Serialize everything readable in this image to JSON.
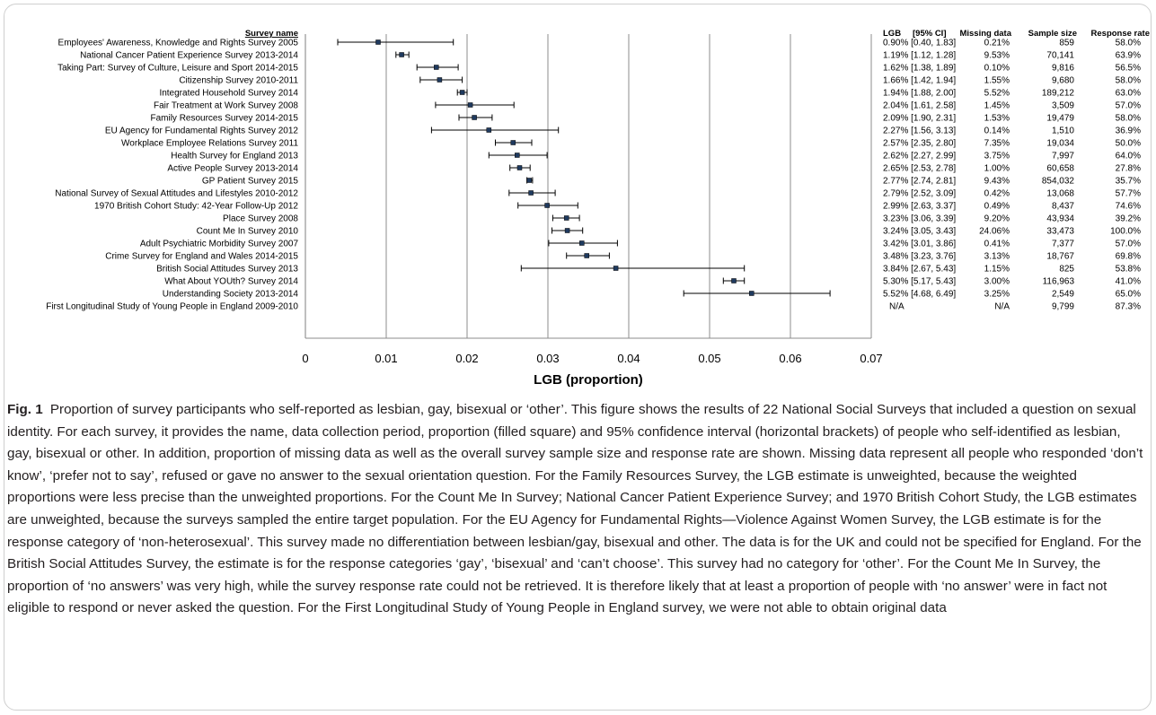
{
  "chart_data": {
    "type": "forest",
    "xlabel": "LGB (proportion)",
    "xlim": [
      0,
      0.07
    ],
    "xticks": [
      "0",
      "0.01",
      "0.02",
      "0.03",
      "0.04",
      "0.05",
      "0.06",
      "0.07"
    ],
    "grid": "vertical",
    "headers": {
      "name": "Survey name",
      "lgb": "LGB",
      "ci": "[95% CI]",
      "missing": "Missing data",
      "sample": "Sample size",
      "response": "Response rate"
    },
    "rows": [
      {
        "name": "Employees' Awareness, Knowledge and Rights Survey 2005",
        "est": 0.009,
        "lo": 0.004,
        "hi": 0.0183,
        "lgb": "0.90% [0.40, 1.83]",
        "missing": "0.21%",
        "sample": "859",
        "response": "58.0%"
      },
      {
        "name": "National Cancer Patient Experience Survey 2013-2014",
        "est": 0.0119,
        "lo": 0.0112,
        "hi": 0.0128,
        "lgb": "1.19% [1.12, 1.28]",
        "missing": "9.53%",
        "sample": "70,141",
        "response": "63.9%"
      },
      {
        "name": "Taking Part: Survey of Culture, Leisure and Sport 2014-2015",
        "est": 0.0162,
        "lo": 0.0138,
        "hi": 0.0189,
        "lgb": "1.62% [1.38, 1.89]",
        "missing": "0.10%",
        "sample": "9,816",
        "response": "56.5%"
      },
      {
        "name": "Citizenship Survey 2010-2011",
        "est": 0.0166,
        "lo": 0.0142,
        "hi": 0.0194,
        "lgb": "1.66% [1.42, 1.94]",
        "missing": "1.55%",
        "sample": "9,680",
        "response": "58.0%"
      },
      {
        "name": "Integrated Household Survey 2014",
        "est": 0.0194,
        "lo": 0.0188,
        "hi": 0.02,
        "lgb": "1.94% [1.88, 2.00]",
        "missing": "5.52%",
        "sample": "189,212",
        "response": "63.0%"
      },
      {
        "name": "Fair Treatment at Work Survey 2008",
        "est": 0.0204,
        "lo": 0.0161,
        "hi": 0.0258,
        "lgb": "2.04% [1.61, 2.58]",
        "missing": "1.45%",
        "sample": "3,509",
        "response": "57.0%"
      },
      {
        "name": "Family Resources Survey 2014-2015",
        "est": 0.0209,
        "lo": 0.019,
        "hi": 0.0231,
        "lgb": "2.09% [1.90, 2.31]",
        "missing": "1.53%",
        "sample": "19,479",
        "response": "58.0%"
      },
      {
        "name": "EU Agency for Fundamental Rights Survey 2012",
        "est": 0.0227,
        "lo": 0.0156,
        "hi": 0.0313,
        "lgb": "2.27% [1.56, 3.13]",
        "missing": "0.14%",
        "sample": "1,510",
        "response": "36.9%"
      },
      {
        "name": "Workplace Employee Relations Survey 2011",
        "est": 0.0257,
        "lo": 0.0235,
        "hi": 0.028,
        "lgb": "2.57% [2.35, 2.80]",
        "missing": "7.35%",
        "sample": "19,034",
        "response": "50.0%"
      },
      {
        "name": "Health Survey for England 2013",
        "est": 0.0262,
        "lo": 0.0227,
        "hi": 0.0299,
        "lgb": "2.62% [2.27, 2.99]",
        "missing": "3.75%",
        "sample": "7,997",
        "response": "64.0%"
      },
      {
        "name": "Active People Survey 2013-2014",
        "est": 0.0265,
        "lo": 0.0253,
        "hi": 0.0278,
        "lgb": "2.65% [2.53, 2.78]",
        "missing": "1.00%",
        "sample": "60,658",
        "response": "27.8%"
      },
      {
        "name": "GP Patient Survey 2015",
        "est": 0.0277,
        "lo": 0.0274,
        "hi": 0.0281,
        "lgb": "2.77% [2.74, 2.81]",
        "missing": "9.43%",
        "sample": "854,032",
        "response": "35.7%"
      },
      {
        "name": "National Survey of Sexual Attitudes and Lifestyles 2010-2012",
        "est": 0.0279,
        "lo": 0.0252,
        "hi": 0.0309,
        "lgb": "2.79% [2.52, 3.09]",
        "missing": "0.42%",
        "sample": "13,068",
        "response": "57.7%"
      },
      {
        "name": "1970 British Cohort Study: 42-Year Follow-Up 2012",
        "est": 0.0299,
        "lo": 0.0263,
        "hi": 0.0337,
        "lgb": "2.99% [2.63, 3.37]",
        "missing": "0.49%",
        "sample": "8,437",
        "response": "74.6%"
      },
      {
        "name": "Place Survey 2008",
        "est": 0.0323,
        "lo": 0.0306,
        "hi": 0.0339,
        "lgb": "3.23% [3.06, 3.39]",
        "missing": "9.20%",
        "sample": "43,934",
        "response": "39.2%"
      },
      {
        "name": "Count Me In Survey 2010",
        "est": 0.0324,
        "lo": 0.0305,
        "hi": 0.0343,
        "lgb": "3.24% [3.05, 3.43]",
        "missing": "24.06%",
        "sample": "33,473",
        "response": "100.0%"
      },
      {
        "name": "Adult Psychiatric Morbidity Survey 2007",
        "est": 0.0342,
        "lo": 0.0301,
        "hi": 0.0386,
        "lgb": "3.42% [3.01, 3.86]",
        "missing": "0.41%",
        "sample": "7,377",
        "response": "57.0%"
      },
      {
        "name": "Crime Survey for England and Wales 2014-2015",
        "est": 0.0348,
        "lo": 0.0323,
        "hi": 0.0376,
        "lgb": "3.48% [3.23, 3.76]",
        "missing": "3.13%",
        "sample": "18,767",
        "response": "69.8%"
      },
      {
        "name": "British Social Attitudes Survey 2013",
        "est": 0.0384,
        "lo": 0.0267,
        "hi": 0.0543,
        "lgb": "3.84% [2.67, 5.43]",
        "missing": "1.15%",
        "sample": "825",
        "response": "53.8%"
      },
      {
        "name": "What About YOUth? Survey 2014",
        "est": 0.053,
        "lo": 0.0517,
        "hi": 0.0543,
        "lgb": "5.30% [5.17, 5.43]",
        "missing": "3.00%",
        "sample": "116,963",
        "response": "41.0%"
      },
      {
        "name": "Understanding Society 2013-2014",
        "est": 0.0552,
        "lo": 0.0468,
        "hi": 0.0649,
        "lgb": "5.52% [4.68, 6.49]",
        "missing": "3.25%",
        "sample": "2,549",
        "response": "65.0%"
      },
      {
        "name": "First Longitudinal Study of Young People in England 2009-2010",
        "est": null,
        "lo": null,
        "hi": null,
        "lgb": "N/A",
        "missing": "N/A",
        "sample": "9,799",
        "response": "87.3%"
      }
    ]
  },
  "caption": {
    "label": "Fig. 1",
    "text": "Proportion of survey participants who self-reported as lesbian, gay, bisexual or ‘other’. This figure shows the results of 22 National Social Surveys that included a question on sexual identity. For each survey, it provides the name, data collection period, proportion (filled square) and 95% confidence interval (horizontal brackets) of people who self-identified as lesbian, gay, bisexual or other. In addition, proportion of missing data as well as the overall survey sample size and response rate are shown. Missing data represent all people who responded ‘don’t know’, ‘prefer not to say’, refused or gave no answer to the sexual orientation question. For the Family Resources Survey, the LGB estimate is unweighted, because the weighted proportions were less precise than the unweighted proportions. For the Count Me In Survey; National Cancer Patient Experience Survey; and 1970 British Cohort Study, the LGB estimates are unweighted, because the surveys sampled the entire target population. For the EU Agency for Fundamental Rights—Violence Against Women Survey, the LGB estimate is for the response category of ‘non-heterosexual’. This survey made no differentiation between lesbian/gay, bisexual and other. The data is for the UK and could not be specified for England. For the British Social Attitudes Survey, the estimate is for the response categories ‘gay’, ‘bisexual’ and ‘can’t choose’. This survey had no category for ‘other’. For the Count Me In Survey, the proportion of ‘no answers’ was very high, while the survey response rate could not be retrieved. It is therefore likely that at least a proportion of people with ‘no answer’ were in fact not eligible to respond or never asked the question. For the First Longitudinal Study of Young People in England survey, we were not able to obtain original data"
  }
}
